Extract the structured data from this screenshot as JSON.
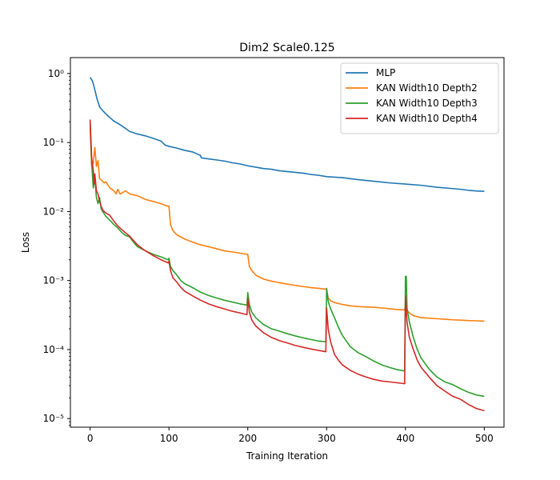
{
  "chart_data": {
    "type": "line",
    "title": "Dim2 Scale0.125",
    "xlabel": "Training Iteration",
    "ylabel": "Loss",
    "xscale": "linear",
    "yscale": "log",
    "xlim": [
      -25,
      525
    ],
    "ylim": [
      7.5e-06,
      1.7
    ],
    "xticks": [
      0,
      100,
      200,
      300,
      400,
      500
    ],
    "xtick_labels": [
      "0",
      "100",
      "200",
      "300",
      "400",
      "500"
    ],
    "yticks": [
      1e-05,
      0.0001,
      0.001,
      0.01,
      0.1,
      1
    ],
    "ytick_labels": [
      "10⁻⁵",
      "10⁻⁴",
      "10⁻³",
      "10⁻²",
      "10⁻¹",
      "10⁰"
    ],
    "grid": false,
    "legend_position": "top-right",
    "series": [
      {
        "name": "MLP",
        "color": "#1f77b4",
        "points": [
          [
            0,
            0.88
          ],
          [
            3,
            0.78
          ],
          [
            6,
            0.58
          ],
          [
            9,
            0.42
          ],
          [
            12,
            0.33
          ],
          [
            16,
            0.29
          ],
          [
            20,
            0.26
          ],
          [
            25,
            0.23
          ],
          [
            30,
            0.205
          ],
          [
            35,
            0.19
          ],
          [
            40,
            0.175
          ],
          [
            45,
            0.16
          ],
          [
            50,
            0.145
          ],
          [
            60,
            0.133
          ],
          [
            70,
            0.125
          ],
          [
            80,
            0.115
          ],
          [
            90,
            0.105
          ],
          [
            95,
            0.092
          ],
          [
            100,
            0.088
          ],
          [
            110,
            0.083
          ],
          [
            120,
            0.077
          ],
          [
            130,
            0.073
          ],
          [
            140,
            0.065
          ],
          [
            141,
            0.06
          ],
          [
            150,
            0.058
          ],
          [
            160,
            0.056
          ],
          [
            170,
            0.054
          ],
          [
            180,
            0.051
          ],
          [
            190,
            0.049
          ],
          [
            200,
            0.046
          ],
          [
            210,
            0.044
          ],
          [
            220,
            0.042
          ],
          [
            230,
            0.041
          ],
          [
            240,
            0.039
          ],
          [
            250,
            0.038
          ],
          [
            260,
            0.037
          ],
          [
            270,
            0.036
          ],
          [
            280,
            0.0345
          ],
          [
            290,
            0.0335
          ],
          [
            300,
            0.032
          ],
          [
            320,
            0.031
          ],
          [
            340,
            0.029
          ],
          [
            360,
            0.0275
          ],
          [
            380,
            0.026
          ],
          [
            400,
            0.025
          ],
          [
            420,
            0.024
          ],
          [
            440,
            0.0225
          ],
          [
            460,
            0.0215
          ],
          [
            470,
            0.021
          ],
          [
            480,
            0.0203
          ],
          [
            490,
            0.0199
          ],
          [
            500,
            0.0196
          ]
        ]
      },
      {
        "name": "KAN Width10 Depth2",
        "color": "#ff7f0e",
        "points": [
          [
            0,
            0.16
          ],
          [
            2,
            0.045
          ],
          [
            4,
            0.05
          ],
          [
            6,
            0.085
          ],
          [
            8,
            0.045
          ],
          [
            10,
            0.055
          ],
          [
            12,
            0.03
          ],
          [
            15,
            0.028
          ],
          [
            18,
            0.026
          ],
          [
            20,
            0.027
          ],
          [
            25,
            0.022
          ],
          [
            30,
            0.02
          ],
          [
            33,
            0.018
          ],
          [
            35,
            0.021
          ],
          [
            38,
            0.018
          ],
          [
            42,
            0.019
          ],
          [
            45,
            0.02
          ],
          [
            50,
            0.018
          ],
          [
            60,
            0.017
          ],
          [
            70,
            0.015
          ],
          [
            80,
            0.014
          ],
          [
            90,
            0.013
          ],
          [
            98,
            0.012
          ],
          [
            100,
            0.012
          ],
          [
            102,
            0.0065
          ],
          [
            105,
            0.0053
          ],
          [
            110,
            0.0046
          ],
          [
            120,
            0.004
          ],
          [
            130,
            0.0036
          ],
          [
            140,
            0.0033
          ],
          [
            150,
            0.0031
          ],
          [
            160,
            0.0029
          ],
          [
            170,
            0.0027
          ],
          [
            180,
            0.0026
          ],
          [
            190,
            0.0025
          ],
          [
            199,
            0.0024
          ],
          [
            200,
            0.0024
          ],
          [
            202,
            0.0016
          ],
          [
            205,
            0.0014
          ],
          [
            210,
            0.0012
          ],
          [
            220,
            0.00105
          ],
          [
            230,
            0.00098
          ],
          [
            240,
            0.00093
          ],
          [
            250,
            0.00089
          ],
          [
            260,
            0.00085
          ],
          [
            270,
            0.00082
          ],
          [
            280,
            0.00079
          ],
          [
            290,
            0.00077
          ],
          [
            299,
            0.00075
          ],
          [
            300,
            0.00075
          ],
          [
            302,
            0.00056
          ],
          [
            305,
            0.00051
          ],
          [
            310,
            0.00048
          ],
          [
            320,
            0.00045
          ],
          [
            330,
            0.00043
          ],
          [
            340,
            0.00042
          ],
          [
            350,
            0.000415
          ],
          [
            360,
            0.00041
          ],
          [
            370,
            0.0004
          ],
          [
            380,
            0.00039
          ],
          [
            390,
            0.00038
          ],
          [
            399,
            0.000375
          ],
          [
            400,
            0.00045
          ],
          [
            402,
            0.00037
          ],
          [
            405,
            0.00034
          ],
          [
            410,
            0.00031
          ],
          [
            420,
            0.00029
          ],
          [
            430,
            0.000285
          ],
          [
            440,
            0.00028
          ],
          [
            450,
            0.000275
          ],
          [
            460,
            0.00027
          ],
          [
            470,
            0.000267
          ],
          [
            480,
            0.000263
          ],
          [
            490,
            0.000261
          ],
          [
            500,
            0.000258
          ]
        ]
      },
      {
        "name": "KAN Width10 Depth3",
        "color": "#2ca02c",
        "points": [
          [
            0,
            0.2
          ],
          [
            2,
            0.05
          ],
          [
            4,
            0.022
          ],
          [
            6,
            0.03
          ],
          [
            8,
            0.016
          ],
          [
            10,
            0.013
          ],
          [
            12,
            0.016
          ],
          [
            14,
            0.011
          ],
          [
            16,
            0.01
          ],
          [
            20,
            0.0085
          ],
          [
            25,
            0.0075
          ],
          [
            30,
            0.0065
          ],
          [
            35,
            0.0058
          ],
          [
            40,
            0.005
          ],
          [
            45,
            0.0045
          ],
          [
            50,
            0.0043
          ],
          [
            55,
            0.0036
          ],
          [
            60,
            0.0031
          ],
          [
            70,
            0.0027
          ],
          [
            80,
            0.0024
          ],
          [
            90,
            0.0022
          ],
          [
            99,
            0.002
          ],
          [
            100,
            0.0021
          ],
          [
            102,
            0.0016
          ],
          [
            105,
            0.0014
          ],
          [
            110,
            0.0012
          ],
          [
            115,
            0.001
          ],
          [
            120,
            0.0009
          ],
          [
            130,
            0.00079
          ],
          [
            140,
            0.00068
          ],
          [
            150,
            0.00061
          ],
          [
            160,
            0.00056
          ],
          [
            170,
            0.00052
          ],
          [
            180,
            0.00049
          ],
          [
            190,
            0.00046
          ],
          [
            199,
            0.00044
          ],
          [
            200,
            0.00067
          ],
          [
            202,
            0.00045
          ],
          [
            205,
            0.00035
          ],
          [
            210,
            0.00029
          ],
          [
            220,
            0.00023
          ],
          [
            230,
            0.0002
          ],
          [
            240,
            0.000185
          ],
          [
            250,
            0.00017
          ],
          [
            260,
            0.000158
          ],
          [
            270,
            0.000148
          ],
          [
            280,
            0.00014
          ],
          [
            290,
            0.000133
          ],
          [
            299,
            0.00013
          ],
          [
            300,
            0.00077
          ],
          [
            302,
            0.0005
          ],
          [
            305,
            0.00039
          ],
          [
            310,
            0.00029
          ],
          [
            315,
            0.00021
          ],
          [
            320,
            0.00016
          ],
          [
            330,
            0.00011
          ],
          [
            340,
            9e-05
          ],
          [
            350,
            7.9e-05
          ],
          [
            360,
            6.8e-05
          ],
          [
            370,
            6e-05
          ],
          [
            380,
            5.5e-05
          ],
          [
            390,
            5.1e-05
          ],
          [
            399,
            4.9e-05
          ],
          [
            400,
            0.00115
          ],
          [
            401,
            0.00115
          ],
          [
            402,
            0.0004
          ],
          [
            405,
            0.00025
          ],
          [
            410,
            0.00015
          ],
          [
            415,
            0.0001
          ],
          [
            420,
            7.5e-05
          ],
          [
            430,
            5.2e-05
          ],
          [
            440,
            4e-05
          ],
          [
            450,
            3.4e-05
          ],
          [
            460,
            3.1e-05
          ],
          [
            470,
            2.7e-05
          ],
          [
            480,
            2.4e-05
          ],
          [
            490,
            2.2e-05
          ],
          [
            500,
            2.1e-05
          ]
        ]
      },
      {
        "name": "KAN Width10 Depth4",
        "color": "#d62728",
        "points": [
          [
            0,
            0.215
          ],
          [
            2,
            0.06
          ],
          [
            4,
            0.04
          ],
          [
            5,
            0.025
          ],
          [
            6,
            0.035
          ],
          [
            8,
            0.02
          ],
          [
            10,
            0.018
          ],
          [
            12,
            0.014
          ],
          [
            14,
            0.012
          ],
          [
            16,
            0.0105
          ],
          [
            20,
            0.0095
          ],
          [
            25,
            0.0088
          ],
          [
            30,
            0.0073
          ],
          [
            35,
            0.0062
          ],
          [
            40,
            0.0055
          ],
          [
            45,
            0.0049
          ],
          [
            50,
            0.0044
          ],
          [
            55,
            0.0038
          ],
          [
            60,
            0.0033
          ],
          [
            70,
            0.0027
          ],
          [
            80,
            0.0023
          ],
          [
            90,
            0.002
          ],
          [
            99,
            0.0018
          ],
          [
            100,
            0.0019
          ],
          [
            102,
            0.0014
          ],
          [
            105,
            0.0011
          ],
          [
            110,
            0.00095
          ],
          [
            115,
            0.0008
          ],
          [
            120,
            0.0007
          ],
          [
            130,
            0.0006
          ],
          [
            140,
            0.00052
          ],
          [
            150,
            0.00046
          ],
          [
            160,
            0.00042
          ],
          [
            170,
            0.00039
          ],
          [
            180,
            0.00036
          ],
          [
            190,
            0.00034
          ],
          [
            199,
            0.00032
          ],
          [
            200,
            0.00055
          ],
          [
            202,
            0.00035
          ],
          [
            205,
            0.00027
          ],
          [
            210,
            0.00022
          ],
          [
            220,
            0.000175
          ],
          [
            230,
            0.00015
          ],
          [
            240,
            0.000135
          ],
          [
            250,
            0.000125
          ],
          [
            260,
            0.000115
          ],
          [
            270,
            0.000108
          ],
          [
            280,
            0.000102
          ],
          [
            290,
            9.7e-05
          ],
          [
            299,
            9.3e-05
          ],
          [
            300,
            0.0004
          ],
          [
            302,
            0.0002
          ],
          [
            305,
            0.00013
          ],
          [
            310,
            8.5e-05
          ],
          [
            315,
            7e-05
          ],
          [
            320,
            6e-05
          ],
          [
            330,
            5e-05
          ],
          [
            340,
            4.4e-05
          ],
          [
            350,
            4e-05
          ],
          [
            360,
            3.7e-05
          ],
          [
            370,
            3.5e-05
          ],
          [
            380,
            3.4e-05
          ],
          [
            390,
            3.3e-05
          ],
          [
            399,
            3.2e-05
          ],
          [
            400,
            0.0006
          ],
          [
            402,
            0.00025
          ],
          [
            405,
            0.00015
          ],
          [
            410,
            0.0001
          ],
          [
            415,
            7e-05
          ],
          [
            420,
            5.5e-05
          ],
          [
            430,
            4e-05
          ],
          [
            440,
            3e-05
          ],
          [
            450,
            2.5e-05
          ],
          [
            460,
            2.1e-05
          ],
          [
            470,
            1.9e-05
          ],
          [
            480,
            1.6e-05
          ],
          [
            490,
            1.4e-05
          ],
          [
            500,
            1.3e-05
          ]
        ]
      }
    ]
  }
}
